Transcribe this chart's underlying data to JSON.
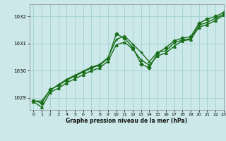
{
  "title": "Graphe pression niveau de la mer (hPa)",
  "bg_color": "#cce8e8",
  "grid_color": "#99cccc",
  "line_color": "#1a6e1a",
  "xlim": [
    -0.5,
    23
  ],
  "ylim": [
    1028.55,
    1032.45
  ],
  "yticks": [
    1029,
    1030,
    1031,
    1032
  ],
  "xticks": [
    0,
    1,
    2,
    3,
    4,
    5,
    6,
    7,
    8,
    9,
    10,
    11,
    12,
    13,
    14,
    15,
    16,
    17,
    18,
    19,
    20,
    21,
    22,
    23
  ],
  "series": [
    {
      "x": [
        0,
        1,
        2,
        3,
        4,
        5,
        6,
        7,
        8,
        9,
        10,
        11,
        12,
        13,
        14,
        15,
        16,
        17,
        18,
        19,
        20,
        21,
        22,
        23
      ],
      "y": [
        1028.9,
        1028.8,
        1029.3,
        1029.45,
        1029.65,
        1029.8,
        1029.95,
        1030.1,
        1030.2,
        1030.45,
        1031.35,
        1031.2,
        1030.85,
        1030.25,
        1030.1,
        1030.65,
        1030.85,
        1031.1,
        1031.2,
        1031.25,
        1031.75,
        1031.9,
        1032.0,
        1032.15
      ],
      "marker": "D",
      "markersize": 2.5,
      "linewidth": 1.0
    },
    {
      "x": [
        0,
        1,
        2,
        3,
        4,
        5,
        6,
        7,
        8,
        9,
        10,
        11,
        12,
        13,
        14,
        15,
        16,
        17,
        18,
        19,
        20,
        21,
        22,
        23
      ],
      "y": [
        1028.85,
        1028.65,
        1029.2,
        1029.35,
        1029.55,
        1029.7,
        1029.85,
        1030.0,
        1030.1,
        1030.35,
        1030.95,
        1031.05,
        1030.8,
        1030.4,
        1030.2,
        1030.55,
        1030.65,
        1030.9,
        1031.1,
        1031.15,
        1031.6,
        1031.7,
        1031.85,
        1032.05
      ],
      "marker": "^",
      "markersize": 2.5,
      "linewidth": 1.0
    },
    {
      "x": [
        0,
        1,
        2,
        3,
        4,
        5,
        6,
        7,
        8,
        9,
        10,
        11,
        12,
        13,
        14,
        15,
        16,
        17,
        18,
        19,
        20,
        21,
        22,
        23
      ],
      "y": [
        1028.88,
        1028.88,
        1029.28,
        1029.48,
        1029.68,
        1029.83,
        1029.98,
        1030.13,
        1030.23,
        1030.48,
        1031.15,
        1031.28,
        1030.98,
        1030.68,
        1030.33,
        1030.68,
        1030.73,
        1031.03,
        1031.13,
        1031.18,
        1031.68,
        1031.78,
        1031.93,
        1032.08
      ],
      "marker": "+",
      "markersize": 3.5,
      "linewidth": 1.0
    }
  ]
}
